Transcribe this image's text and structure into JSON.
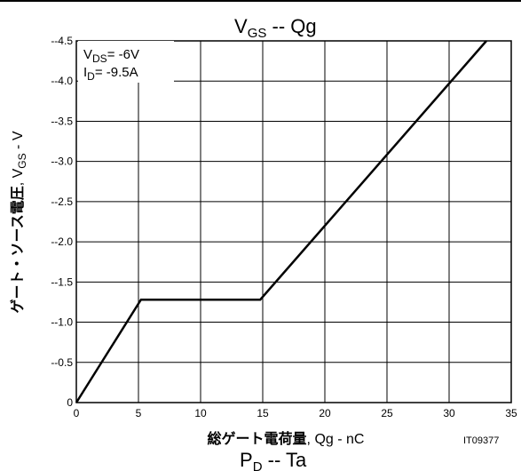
{
  "chart_data": {
    "type": "line",
    "title": {
      "main": "V",
      "sub": "GS",
      "rest": " -- Qg"
    },
    "xlabel": {
      "bold": "総ゲート電荷量",
      "rest": ", Qg - nC"
    },
    "ylabel": {
      "bold": "ゲート・ソース電圧",
      "rest": ", V",
      "sub": "GS",
      "tail": " - V"
    },
    "x_ticks": [
      "0",
      "5",
      "10",
      "15",
      "20",
      "25",
      "30",
      "35"
    ],
    "y_ticks": [
      "0",
      "--0.5",
      "--1.0",
      "--1.5",
      "--2.0",
      "--2.5",
      "--3.0",
      "--3.5",
      "--4.0",
      "--4.5"
    ],
    "xlim": [
      0,
      35
    ],
    "ylim": [
      0,
      -4.5
    ],
    "grid": true,
    "series": [
      {
        "points": [
          {
            "x": 0,
            "y": 0
          },
          {
            "x": 5.2,
            "y": -1.28
          },
          {
            "x": 14.8,
            "y": -1.28
          },
          {
            "x": 33,
            "y": -4.5
          }
        ]
      }
    ],
    "annotations": [
      {
        "pre": "V",
        "sub": "DS",
        "post": "= -6V"
      },
      {
        "pre": "I",
        "sub": "D",
        "post": "= -9.5A"
      }
    ],
    "figure_id": "IT09377",
    "next_title": {
      "main": "P",
      "sub": "D",
      "rest": " -- Ta"
    },
    "line_color": "#000000"
  }
}
